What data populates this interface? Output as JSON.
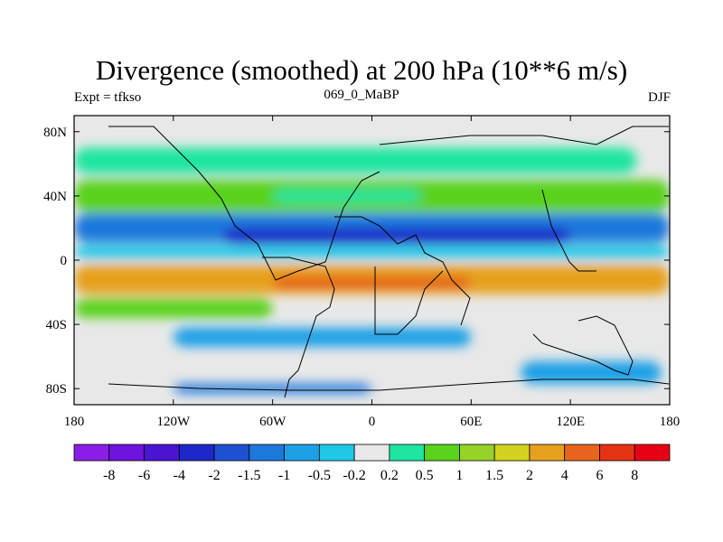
{
  "chart_data": {
    "type": "heatmap",
    "title": "Divergence (smoothed) at 200 hPa (10**6 m/s)",
    "subtitle_left": "Expt = tfkso",
    "subtitle_center": "069_0_MaBP",
    "subtitle_right": "DJF",
    "x_ticks": [
      {
        "value": -180,
        "label": "180"
      },
      {
        "value": -120,
        "label": "120W"
      },
      {
        "value": -60,
        "label": "60W"
      },
      {
        "value": 0,
        "label": "0"
      },
      {
        "value": 60,
        "label": "60E"
      },
      {
        "value": 120,
        "label": "120E"
      },
      {
        "value": 180,
        "label": "180"
      }
    ],
    "y_ticks": [
      {
        "value": 80,
        "label": "80N"
      },
      {
        "value": 40,
        "label": "40N"
      },
      {
        "value": 0,
        "label": "0"
      },
      {
        "value": -40,
        "label": "40S"
      },
      {
        "value": -80,
        "label": "80S"
      }
    ],
    "xlim": [
      -180,
      180
    ],
    "ylim": [
      -90,
      90
    ],
    "colorbar": {
      "levels": [
        "-8",
        "-6",
        "-4",
        "-2",
        "-1.5",
        "-1",
        "-0.5",
        "-0.2",
        "0.2",
        "0.5",
        "1",
        "1.5",
        "2",
        "4",
        "6",
        "8"
      ],
      "colors": [
        "#8a1ee6",
        "#6e14dc",
        "#4b14d2",
        "#1e28c8",
        "#1e50d2",
        "#1e78dc",
        "#1ea0e6",
        "#1ec8e6",
        "#e8e8e8",
        "#1ee6a0",
        "#5ad21e",
        "#96d228",
        "#d2d21e",
        "#e6a01e",
        "#e6641e",
        "#e63214",
        "#e60014"
      ]
    },
    "bands": [
      {
        "lat": 62,
        "half": 8,
        "color": "#1ee6a0",
        "lon0": -180,
        "lon1": 160
      },
      {
        "lat": 40,
        "half": 10,
        "color": "#5ad21e",
        "lon0": -180,
        "lon1": 180
      },
      {
        "lat": 40,
        "half": 4,
        "color": "#1ee6a0",
        "lon0": -60,
        "lon1": 30
      },
      {
        "lat": 20,
        "half": 9,
        "color": "#1e78dc",
        "lon0": -180,
        "lon1": 180
      },
      {
        "lat": 15,
        "half": 5,
        "color": "#1e28c8",
        "lon0": -90,
        "lon1": 120
      },
      {
        "lat": 5,
        "half": 4,
        "color": "#1ec8e6",
        "lon0": -180,
        "lon1": 180
      },
      {
        "lat": -12,
        "half": 9,
        "color": "#e6a01e",
        "lon0": -180,
        "lon1": 180
      },
      {
        "lat": -14,
        "half": 4,
        "color": "#e6641e",
        "lon0": -60,
        "lon1": 60
      },
      {
        "lat": -30,
        "half": 6,
        "color": "#5ad21e",
        "lon0": -180,
        "lon1": -60
      },
      {
        "lat": -48,
        "half": 6,
        "color": "#1ea0e6",
        "lon0": -120,
        "lon1": 60
      },
      {
        "lat": -70,
        "half": 7,
        "color": "#1ea0e6",
        "lon0": 90,
        "lon1": 175
      },
      {
        "lat": -80,
        "half": 3,
        "color": "#1e78dc",
        "lon0": -120,
        "lon1": 0
      }
    ]
  }
}
